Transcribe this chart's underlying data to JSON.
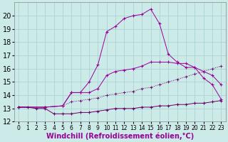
{
  "xlabel": "Windchill (Refroidissement éolien,°C)",
  "background_color": "#cceae8",
  "grid_color": "#aad4d2",
  "line_color1": "#990099",
  "line_color2": "#660066",
  "xlim": [
    -0.5,
    23.5
  ],
  "ylim": [
    12,
    21
  ],
  "xticks": [
    0,
    1,
    2,
    3,
    4,
    5,
    6,
    7,
    8,
    9,
    10,
    11,
    12,
    13,
    14,
    15,
    16,
    17,
    18,
    19,
    20,
    21,
    22,
    23
  ],
  "yticks": [
    12,
    13,
    14,
    15,
    16,
    17,
    18,
    19,
    20
  ],
  "font_size_xlabel": 7,
  "font_size_ytick": 7,
  "font_size_xtick": 5.5,
  "line_big_x": [
    0,
    3,
    5,
    6,
    7,
    8,
    9,
    10,
    11,
    12,
    13,
    14,
    15,
    16,
    17,
    18,
    19,
    20,
    21,
    22,
    23
  ],
  "line_big_y": [
    13.1,
    13.1,
    13.2,
    14.2,
    14.2,
    15.0,
    16.3,
    18.8,
    19.2,
    19.8,
    20.0,
    20.1,
    20.5,
    19.4,
    17.1,
    16.5,
    16.1,
    16.1,
    15.3,
    14.8,
    13.7
  ],
  "line_diag_x": [
    0,
    3,
    5,
    6,
    7,
    8,
    9,
    10,
    11,
    12,
    13,
    14,
    15,
    16,
    17,
    18,
    19,
    20,
    21,
    22,
    23
  ],
  "line_diag_y": [
    13.1,
    13.1,
    13.2,
    14.2,
    14.2,
    14.2,
    14.5,
    15.5,
    15.8,
    15.9,
    16.0,
    16.2,
    16.5,
    16.5,
    16.5,
    16.4,
    16.4,
    16.1,
    15.8,
    15.5,
    14.8
  ],
  "line_slope_x": [
    0,
    3,
    5,
    6,
    7,
    8,
    9,
    10,
    11,
    12,
    13,
    14,
    15,
    16,
    17,
    18,
    19,
    20,
    21,
    22,
    23
  ],
  "line_slope_y": [
    13.1,
    13.1,
    13.2,
    13.5,
    13.6,
    13.7,
    13.8,
    14.0,
    14.1,
    14.2,
    14.3,
    14.5,
    14.6,
    14.8,
    15.0,
    15.2,
    15.4,
    15.6,
    15.8,
    16.0,
    16.2
  ],
  "line_bot_x": [
    0,
    1,
    2,
    3,
    4,
    5,
    6,
    7,
    8,
    9,
    10,
    11,
    12,
    13,
    14,
    15,
    16,
    17,
    18,
    19,
    20,
    21,
    22,
    23
  ],
  "line_bot_y": [
    13.1,
    13.1,
    13.0,
    13.0,
    12.6,
    12.6,
    12.6,
    12.7,
    12.7,
    12.8,
    12.9,
    13.0,
    13.0,
    13.0,
    13.1,
    13.1,
    13.2,
    13.2,
    13.3,
    13.3,
    13.4,
    13.4,
    13.5,
    13.6
  ]
}
